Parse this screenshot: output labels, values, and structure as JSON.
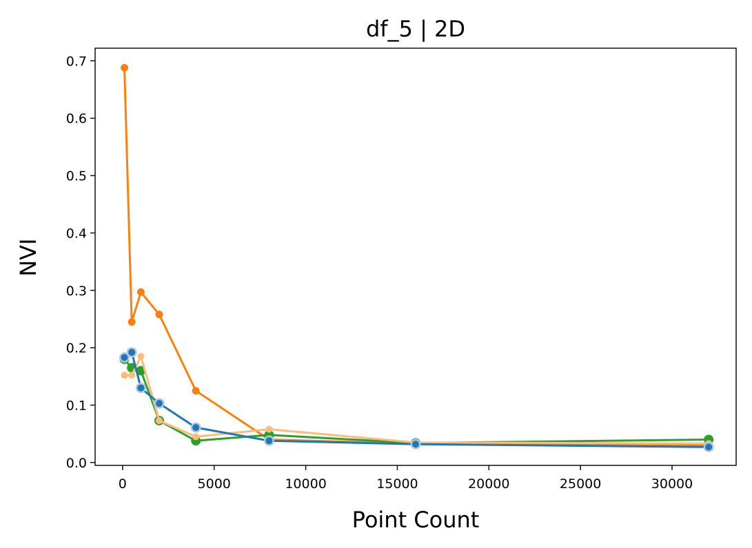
{
  "chart_data": {
    "type": "line",
    "title": "df_5 | 2D",
    "xlabel": "Point Count",
    "ylabel": "NVI",
    "xlim": [
      -1500,
      33500
    ],
    "ylim": [
      -0.005,
      0.722
    ],
    "xticks": [
      0,
      5000,
      10000,
      15000,
      20000,
      25000,
      30000
    ],
    "xtick_labels": [
      "0",
      "5000",
      "10000",
      "15000",
      "20000",
      "25000",
      "30000"
    ],
    "yticks": [
      0.0,
      0.1,
      0.2,
      0.3,
      0.4,
      0.5,
      0.6,
      0.7
    ],
    "ytick_labels": [
      "0.0",
      "0.1",
      "0.2",
      "0.3",
      "0.4",
      "0.5",
      "0.6",
      "0.7"
    ],
    "grid": false,
    "legend": false,
    "series": [
      {
        "color": "#ff7f0e",
        "marker_size": 5.5,
        "x": [
          100,
          500,
          1000,
          2000,
          4000,
          8000,
          16000,
          32000
        ],
        "y": [
          0.688,
          0.245,
          0.297,
          0.258,
          0.125,
          0.04,
          0.033,
          0.03
        ]
      },
      {
        "color": "#2ca02c",
        "marker_size": 7,
        "x": [
          100,
          500,
          1000,
          2000,
          4000,
          8000,
          16000,
          32000
        ],
        "y": [
          0.18,
          0.165,
          0.16,
          0.073,
          0.038,
          0.048,
          0.034,
          0.04
        ]
      },
      {
        "color": "#ffbb78",
        "marker_size": 5,
        "x": [
          100,
          500,
          1000,
          2000,
          4000,
          8000,
          16000,
          32000
        ],
        "y": [
          0.152,
          0.152,
          0.185,
          0.073,
          0.045,
          0.058,
          0.035,
          0.033
        ]
      },
      {
        "color": "#1f77b4",
        "marker_size": 5,
        "halo_color": "#aec7e8",
        "halo_size": 7.5,
        "x": [
          100,
          500,
          1000,
          2000,
          4000,
          8000,
          16000,
          32000
        ],
        "y": [
          0.183,
          0.192,
          0.13,
          0.103,
          0.061,
          0.038,
          0.032,
          0.027
        ]
      }
    ]
  }
}
